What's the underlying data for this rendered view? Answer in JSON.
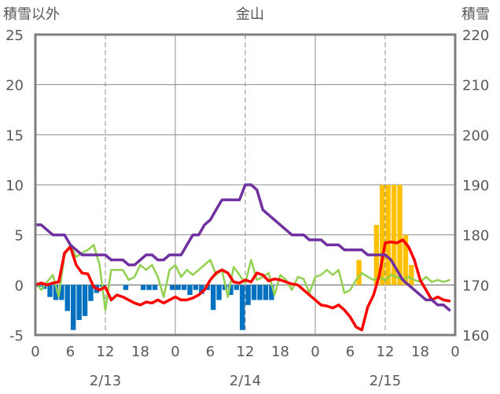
{
  "chart_data": {
    "type": "combo-bar-line",
    "title": "金山",
    "ylabel_left": "積雪以外",
    "ylabel_right": "積雪",
    "ylim_left": [
      -5,
      25
    ],
    "ylim_right": [
      160,
      220
    ],
    "yticks_left": [
      "25",
      "20",
      "15",
      "10",
      "5",
      "0",
      "-5"
    ],
    "yticks_right": [
      "220",
      "210",
      "200",
      "190",
      "180",
      "170",
      "160"
    ],
    "xlim_hours": [
      0,
      72
    ],
    "xticks": [
      "0",
      "6",
      "12",
      "18",
      "0",
      "6",
      "12",
      "18",
      "0",
      "6",
      "12",
      "18",
      "0"
    ],
    "date_labels": [
      "2/13",
      "2/14",
      "2/15"
    ],
    "colors": {
      "snow_depth": "#7030a0",
      "temperature": "#ff0000",
      "wind": "#92d050",
      "precip_positive": "#ffc000",
      "precip_negative": "#0070c0",
      "grid": "#8c8c8c",
      "frame": "#7f7f7f"
    },
    "series": [
      {
        "name": "bars_negative",
        "axis": "left",
        "type": "bar",
        "x": [
          0,
          1,
          2,
          3,
          4,
          5,
          6,
          7,
          8,
          9,
          10,
          11,
          12,
          13,
          14,
          15,
          16,
          17,
          18,
          19,
          20,
          21,
          22,
          23,
          24,
          25,
          26,
          27,
          28,
          29,
          30,
          31,
          32,
          33,
          34,
          35,
          36,
          37,
          38,
          39,
          40
        ],
        "values": [
          -0.2,
          -0.4,
          -1.2,
          -1.5,
          -1.5,
          -2.6,
          -4.5,
          -3.5,
          -3.1,
          -1.6,
          -0.8,
          -0.2,
          0,
          0,
          0,
          -0.5,
          0,
          0,
          -0.5,
          -0.5,
          -0.5,
          0,
          0,
          -0.5,
          -0.5,
          -0.5,
          -1.0,
          -0.5,
          -0.9,
          -0.5,
          -2.5,
          -1.5,
          -0.5,
          -1.0,
          -0.5,
          -4.5,
          -2.0,
          -1.5,
          -1.5,
          -1.5,
          -1.5
        ]
      },
      {
        "name": "bars_positive",
        "axis": "left",
        "type": "bar",
        "x": [
          55,
          58,
          59,
          60,
          61,
          62,
          63,
          64
        ],
        "values": [
          2.5,
          6.0,
          10.0,
          10.0,
          10.0,
          10.0,
          5.0,
          2.0
        ]
      },
      {
        "name": "snow_depth",
        "axis": "right",
        "type": "line",
        "x": [
          0,
          1,
          2,
          3,
          4,
          5,
          6,
          7,
          8,
          9,
          10,
          11,
          12,
          13,
          14,
          15,
          16,
          17,
          18,
          19,
          20,
          21,
          22,
          23,
          24,
          25,
          26,
          27,
          28,
          29,
          30,
          31,
          32,
          33,
          34,
          35,
          36,
          37,
          38,
          39,
          40,
          41,
          42,
          43,
          44,
          45,
          46,
          47,
          48,
          49,
          50,
          51,
          52,
          53,
          54,
          55,
          56,
          57,
          58,
          59,
          60,
          61,
          62,
          63,
          64,
          65,
          66,
          67,
          68,
          69,
          70,
          71
        ],
        "values": [
          182,
          182,
          181,
          180,
          180,
          180,
          178,
          177,
          176,
          176,
          176,
          176,
          176,
          175,
          175,
          175,
          174,
          174,
          175,
          176,
          176,
          175,
          175,
          176,
          176,
          176,
          178,
          180,
          180,
          182,
          183,
          185,
          187,
          187,
          187,
          187,
          190,
          190,
          189,
          185,
          184,
          183,
          182,
          181,
          180,
          180,
          180,
          179,
          179,
          179,
          178,
          178,
          178,
          177,
          177,
          177,
          177,
          176,
          176,
          176,
          176,
          175,
          173,
          171,
          170,
          169,
          168,
          167,
          167,
          166,
          166,
          165
        ]
      },
      {
        "name": "temperature",
        "axis": "left",
        "type": "line",
        "x": [
          0,
          1,
          2,
          3,
          4,
          5,
          6,
          7,
          8,
          9,
          10,
          11,
          12,
          13,
          14,
          15,
          16,
          17,
          18,
          19,
          20,
          21,
          22,
          23,
          24,
          25,
          26,
          27,
          28,
          29,
          30,
          31,
          32,
          33,
          34,
          35,
          36,
          37,
          38,
          39,
          40,
          41,
          42,
          43,
          44,
          45,
          46,
          47,
          48,
          49,
          50,
          51,
          52,
          53,
          54,
          55,
          56,
          57,
          58,
          59,
          60,
          61,
          62,
          63,
          64,
          65,
          66,
          67,
          68,
          69,
          70,
          71
        ],
        "values": [
          0,
          0.2,
          0,
          0.2,
          0.3,
          3.2,
          3.8,
          2.0,
          1.2,
          1.1,
          -0.2,
          -0.5,
          -0.2,
          -1.5,
          -1.0,
          -1.2,
          -1.5,
          -1.8,
          -2.0,
          -1.7,
          -1.8,
          -1.5,
          -1.8,
          -1.5,
          -1.2,
          -1.5,
          -1.5,
          -1.3,
          -1.0,
          -0.5,
          0.5,
          1.2,
          1.5,
          1.2,
          0.3,
          0.2,
          0.5,
          0.3,
          1.2,
          1.0,
          0.4,
          0.6,
          0.5,
          0.3,
          0.1,
          0,
          -0.5,
          -1.0,
          -1.5,
          -2.0,
          -2.1,
          -2.3,
          -2.0,
          -2.5,
          -3.2,
          -4.2,
          -4.5,
          -2.2,
          -1.0,
          1.0,
          4.2,
          4.3,
          4.2,
          4.5,
          3.8,
          2.5,
          0.5,
          -0.5,
          -1.5,
          -1.2,
          -1.5,
          -1.6
        ]
      },
      {
        "name": "wind",
        "axis": "left",
        "type": "line",
        "x": [
          0,
          1,
          2,
          3,
          4,
          5,
          6,
          7,
          8,
          9,
          10,
          11,
          12,
          13,
          14,
          15,
          16,
          17,
          18,
          19,
          20,
          21,
          22,
          23,
          24,
          25,
          26,
          27,
          28,
          29,
          30,
          31,
          32,
          33,
          34,
          35,
          36,
          37,
          38,
          39,
          40,
          41,
          42,
          43,
          44,
          45,
          46,
          47,
          48,
          49,
          50,
          51,
          52,
          53,
          54,
          55,
          56,
          57,
          58,
          59,
          60,
          61,
          62,
          63,
          64,
          65,
          66,
          67,
          68,
          69,
          70,
          71
        ],
        "values": [
          0.3,
          -0.5,
          0.3,
          1.0,
          -1.2,
          3.0,
          4.0,
          2.8,
          3.2,
          3.5,
          4.0,
          2.0,
          -2.5,
          1.5,
          1.5,
          1.5,
          0.5,
          0.8,
          2.0,
          1.5,
          2.0,
          0.8,
          -1.2,
          1.5,
          2.0,
          0.8,
          1.5,
          1.0,
          1.5,
          2.0,
          2.5,
          1.0,
          1.5,
          -1.2,
          1.8,
          1.0,
          0.2,
          2.5,
          0.5,
          0.8,
          1.2,
          -1.0,
          1.0,
          0.5,
          -0.5,
          0.8,
          0.6,
          -0.8,
          0.8,
          1.0,
          1.5,
          1.0,
          1.5,
          -0.8,
          -0.5,
          0.5,
          1.2,
          0.8,
          0.5,
          0.8,
          0.5,
          1.0,
          0.8,
          0.5,
          0.8,
          0.5,
          0.3,
          0.8,
          0.3,
          0.5,
          0.3,
          0.5
        ]
      }
    ]
  }
}
